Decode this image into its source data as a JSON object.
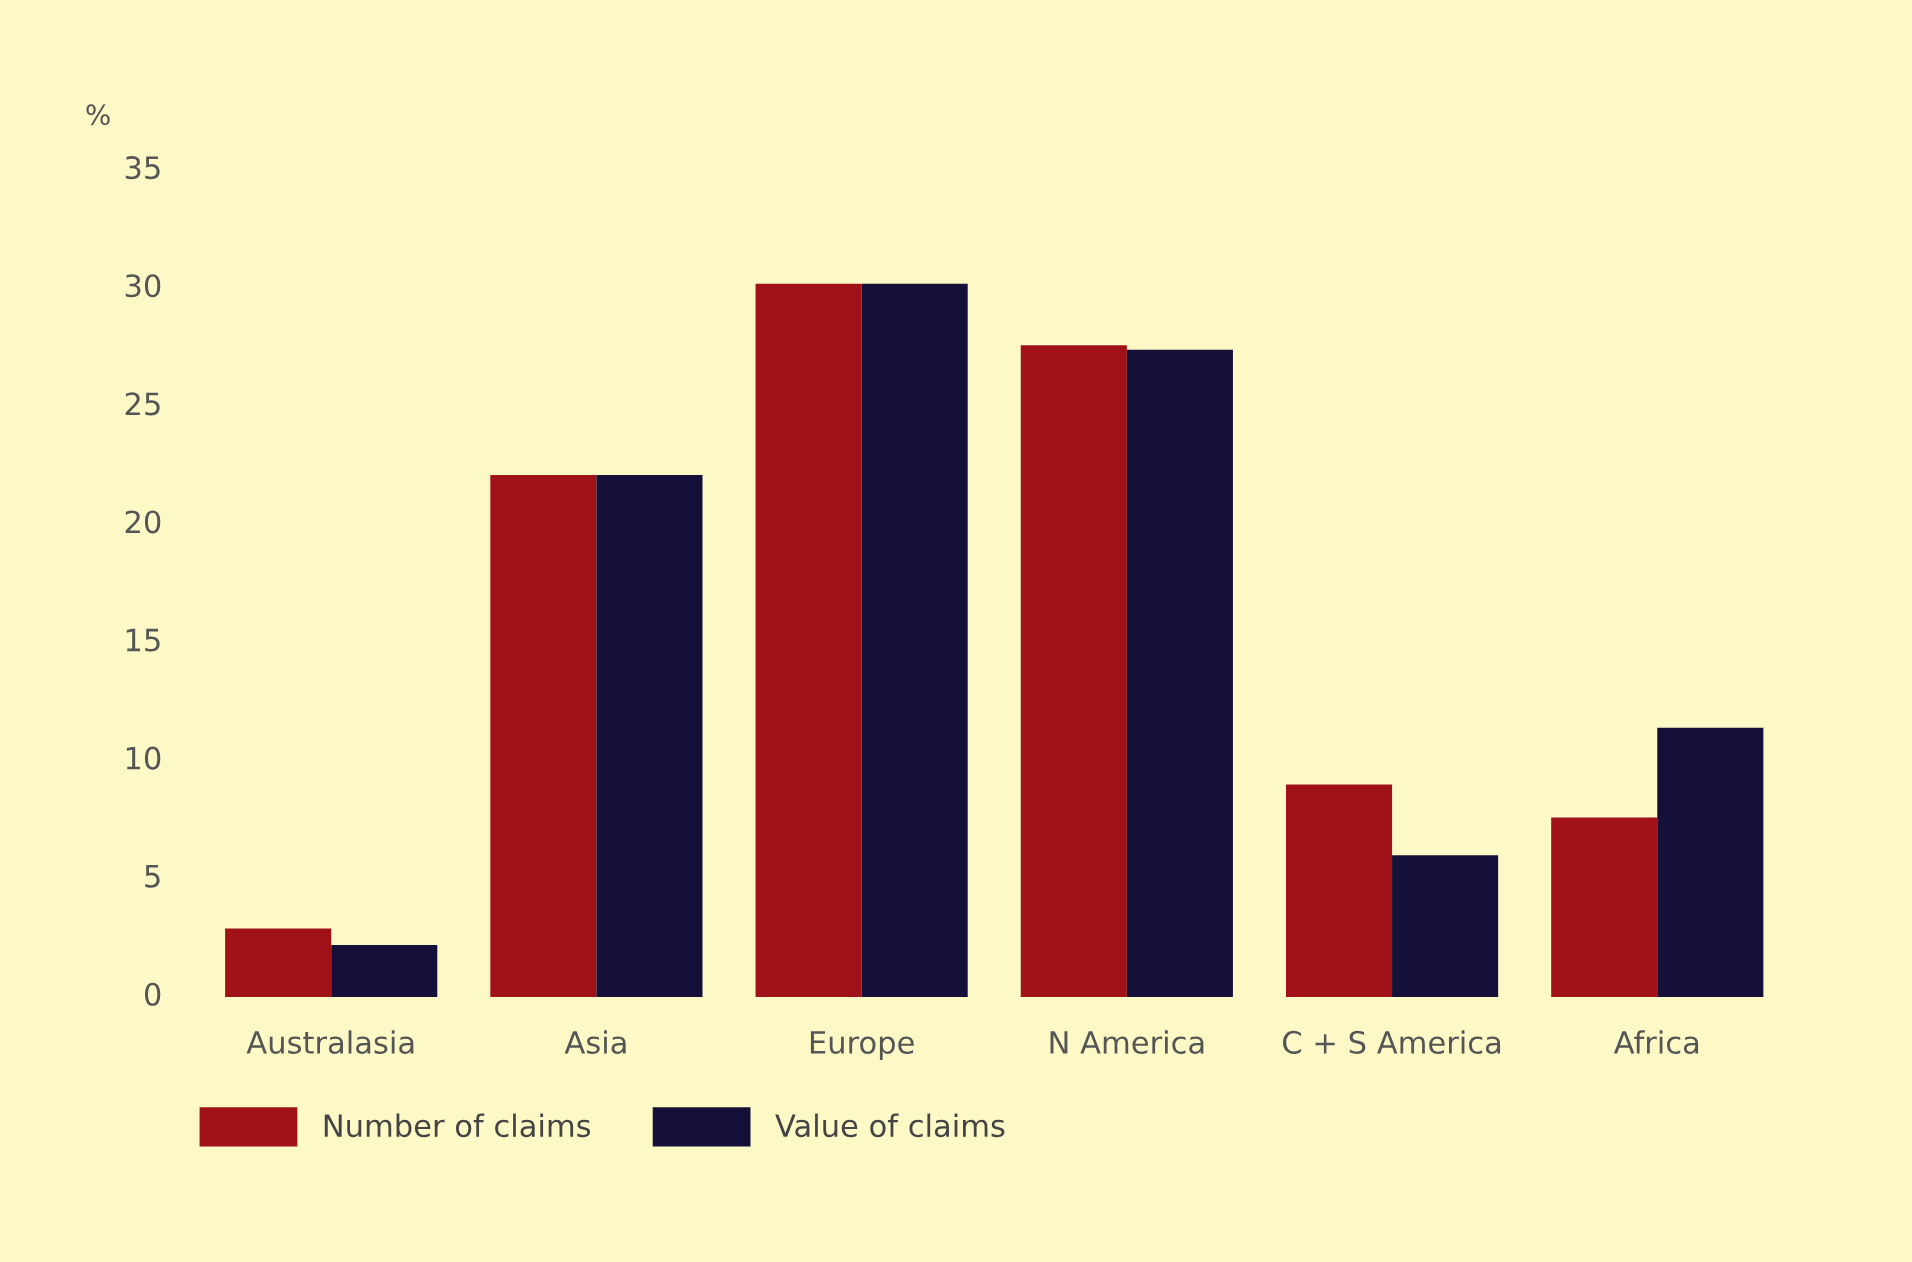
{
  "chart_data": {
    "type": "bar",
    "ylabel": "%",
    "categories": [
      "Australasia",
      "Asia",
      "Europe",
      "N America",
      "C + S America",
      "Africa"
    ],
    "series": [
      {
        "name": "Number of claims",
        "color": "#a01218",
        "values": [
          2.9,
          22.1,
          30.2,
          27.6,
          9.0,
          7.6
        ]
      },
      {
        "name": "Value of claims",
        "color": "#14103a",
        "values": [
          2.2,
          22.1,
          30.2,
          27.4,
          6.0,
          11.4
        ]
      }
    ],
    "ylim": [
      0,
      35
    ],
    "yticks": [
      0,
      5,
      10,
      15,
      20,
      25,
      30,
      35
    ],
    "grid": false,
    "legend": "bottom"
  }
}
